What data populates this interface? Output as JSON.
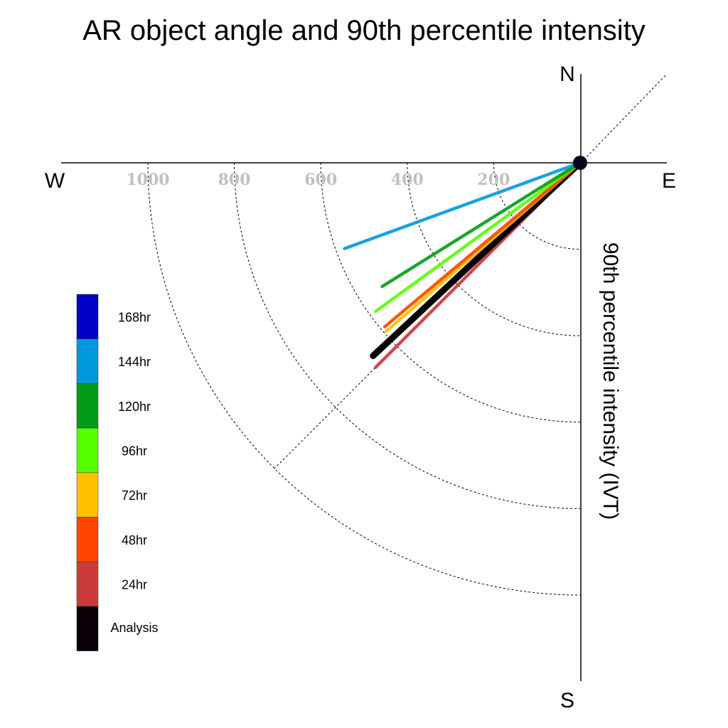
{
  "chart_data": {
    "type": "polar-line",
    "title": "AR object angle and 90th percentile intensity",
    "radial_label": "90th percentile intensity (IVT)",
    "compass": {
      "north": "N",
      "south": "S",
      "east": "E",
      "west": "W"
    },
    "radial_ticks": [
      200,
      400,
      600,
      800,
      1000
    ],
    "radial_tick_labels": [
      "200",
      "400",
      "600",
      "800",
      "1000"
    ],
    "radial_max": 1000,
    "grid": true,
    "legend_position": "left",
    "series": [
      {
        "name": "24hr",
        "angle_deg": 225,
        "intensity": 670,
        "color": "#cc3b3b"
      },
      {
        "name": "Analysis",
        "angle_deg": 227,
        "intensity": 655,
        "color": "#0a0008"
      },
      {
        "name": "72hr",
        "angle_deg": 229,
        "intensity": 595,
        "color": "#ffc000"
      },
      {
        "name": "48hr",
        "angle_deg": 230,
        "intensity": 590,
        "color": "#ff4500"
      },
      {
        "name": "96hr",
        "angle_deg": 234,
        "intensity": 585,
        "color": "#55ff00"
      },
      {
        "name": "120hr",
        "angle_deg": 238,
        "intensity": 540,
        "color": "#009c17"
      },
      {
        "name": "144hr",
        "angle_deg": 250,
        "intensity": 580,
        "color": "#0098dc"
      }
    ],
    "legend": [
      {
        "name": "168hr",
        "color": "#0000c8"
      },
      {
        "name": "144hr",
        "color": "#0098dc"
      },
      {
        "name": "120hr",
        "color": "#009c17"
      },
      {
        "name": "96hr",
        "color": "#55ff00"
      },
      {
        "name": "72hr",
        "color": "#ffc000"
      },
      {
        "name": "48hr",
        "color": "#ff4500"
      },
      {
        "name": "24hr",
        "color": "#cc3b3b"
      },
      {
        "name": "Analysis",
        "color": "#0a0008"
      }
    ]
  }
}
